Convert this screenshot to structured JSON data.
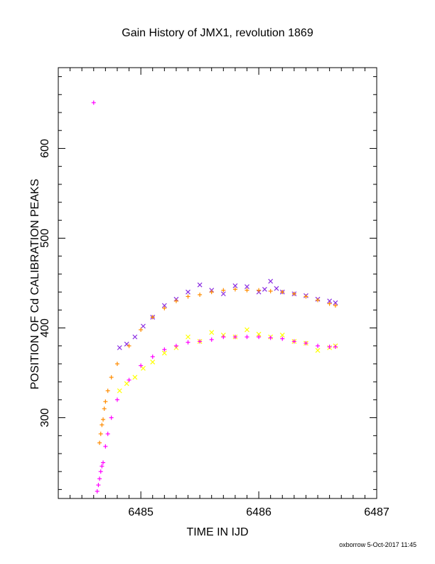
{
  "chart_data": {
    "type": "scatter",
    "title": "Gain History of JMX1, revolution 1869",
    "xlabel": "TIME IN IJD",
    "ylabel": "POSITION OF Cd CALIBRATION PEAKS",
    "xlim": [
      6484.3,
      6487
    ],
    "ylim": [
      210,
      690
    ],
    "x_ticks": [
      "6485",
      "6486",
      "6487"
    ],
    "y_ticks": [
      "300",
      "400",
      "500",
      "600"
    ],
    "grid": false,
    "legend": "none",
    "series": [
      {
        "marker": "x",
        "color": "#8a2be2",
        "x": [
          6484.82,
          6484.88,
          6484.95,
          6485.02,
          6485.1,
          6485.2,
          6485.3,
          6485.4,
          6485.5,
          6485.6,
          6485.7,
          6485.8,
          6485.9,
          6486.0,
          6486.05,
          6486.1,
          6486.15,
          6486.2,
          6486.3,
          6486.4,
          6486.5,
          6486.6,
          6486.65
        ],
        "y": [
          378,
          382,
          390,
          402,
          412,
          425,
          432,
          440,
          448,
          442,
          438,
          447,
          446,
          440,
          443,
          452,
          444,
          440,
          438,
          436,
          432,
          430,
          428
        ]
      },
      {
        "marker": "x",
        "color": "#ffff00",
        "x": [
          6484.82,
          6484.88,
          6484.95,
          6485.02,
          6485.1,
          6485.2,
          6485.3,
          6485.4,
          6485.5,
          6485.6,
          6485.7,
          6485.8,
          6485.9,
          6486.0,
          6486.1,
          6486.2,
          6486.3,
          6486.4,
          6486.5,
          6486.6,
          6486.65
        ],
        "y": [
          330,
          338,
          345,
          355,
          362,
          372,
          378,
          390,
          385,
          395,
          392,
          390,
          398,
          393,
          390,
          392,
          385,
          383,
          375,
          378,
          380
        ]
      },
      {
        "marker": "+",
        "color": "#ff8c00",
        "x": [
          6484.65,
          6484.66,
          6484.67,
          6484.68,
          6484.69,
          6484.7,
          6484.72,
          6484.75,
          6484.8,
          6484.9,
          6485.0,
          6485.1,
          6485.2,
          6485.3,
          6485.4,
          6485.5,
          6485.6,
          6485.7,
          6485.8,
          6485.9,
          6486.0,
          6486.1,
          6486.2,
          6486.3,
          6486.4,
          6486.5,
          6486.6,
          6486.65
        ],
        "y": [
          272,
          282,
          292,
          298,
          310,
          318,
          330,
          345,
          360,
          380,
          398,
          412,
          422,
          430,
          435,
          437,
          440,
          442,
          443,
          442,
          442,
          441,
          440,
          438,
          435,
          431,
          427,
          425
        ]
      },
      {
        "marker": "+",
        "color": "#ff00ff",
        "x": [
          6484.6,
          6484.63,
          6484.64,
          6484.65,
          6484.66,
          6484.67,
          6484.68,
          6484.7,
          6484.72,
          6484.75,
          6484.8,
          6484.9,
          6485.0,
          6485.1,
          6485.2,
          6485.3,
          6485.4,
          6485.5,
          6485.6,
          6485.7,
          6485.8,
          6485.9,
          6486.0,
          6486.1,
          6486.2,
          6486.3,
          6486.4,
          6486.5,
          6486.6,
          6486.65
        ],
        "y": [
          651,
          218,
          225,
          232,
          240,
          246,
          250,
          268,
          282,
          300,
          320,
          342,
          358,
          368,
          376,
          380,
          384,
          385,
          387,
          390,
          390,
          390,
          390,
          389,
          388,
          385,
          383,
          380,
          379,
          379
        ]
      }
    ]
  },
  "footer": "oxborrow 5-Oct-2017 11:45"
}
